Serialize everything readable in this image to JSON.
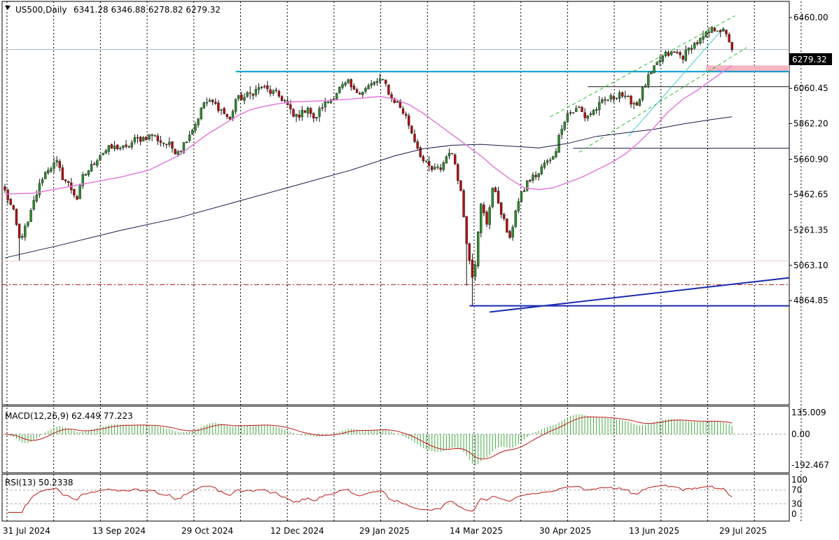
{
  "header": {
    "symbol": "US500,Daily",
    "ohlc": "6341.28 6346.88 6278.82 6279.32"
  },
  "current_price_label": "6279.32",
  "macd_label": "MACD(12,26,9) 62.449 77.223",
  "rsi_label": "RSI(13) 50.2338",
  "colors": {
    "bull": "#2e8b2e",
    "bear": "#b01010",
    "ma_fast": "#e680e0",
    "ma_slow": "#1a1a4a",
    "resistance": "#0099cc",
    "trend_blue": "#1a2ab0",
    "channel_green": "#22bb22",
    "channel_cyan": "#44cccc",
    "zone_pink": "#f4b6c2",
    "macd_line": "#c01818",
    "macd_hist": "#44aa44",
    "rsi_line": "#c01818"
  },
  "chart_data": [
    {
      "type": "candlestick",
      "title": "US500,Daily",
      "ylim": [
        4764,
        6540
      ],
      "y_ticks": [
        "6460.00",
        "6060.45",
        "5862.20",
        "5660.90",
        "5462.65",
        "5261.35",
        "5063.10",
        "4864.85"
      ],
      "x_labels": [
        "31 Jul 2024",
        "13 Sep 2024",
        "29 Oct 2024",
        "12 Dec 2024",
        "29 Jan 2025",
        "14 Mar 2025",
        "30 Apr 2025",
        "13 Jun 2025",
        "29 Jul 2025"
      ],
      "last_price": 6279.32,
      "path_points": [
        [
          0,
          5480
        ],
        [
          3,
          5360
        ],
        [
          5,
          5210
        ],
        [
          8,
          5300
        ],
        [
          10,
          5420
        ],
        [
          13,
          5560
        ],
        [
          15,
          5610
        ],
        [
          18,
          5640
        ],
        [
          20,
          5560
        ],
        [
          22,
          5520
        ],
        [
          25,
          5440
        ],
        [
          27,
          5560
        ],
        [
          30,
          5620
        ],
        [
          33,
          5690
        ],
        [
          36,
          5720
        ],
        [
          39,
          5730
        ],
        [
          42,
          5720
        ],
        [
          45,
          5770
        ],
        [
          48,
          5780
        ],
        [
          51,
          5800
        ],
        [
          54,
          5760
        ],
        [
          57,
          5740
        ],
        [
          59,
          5710
        ],
        [
          61,
          5720
        ],
        [
          63,
          5780
        ],
        [
          66,
          5860
        ],
        [
          69,
          5980
        ],
        [
          72,
          5980
        ],
        [
          75,
          5940
        ],
        [
          78,
          5880
        ],
        [
          80,
          6000
        ],
        [
          83,
          6010
        ],
        [
          86,
          6040
        ],
        [
          89,
          6070
        ],
        [
          92,
          6040
        ],
        [
          94,
          6030
        ],
        [
          97,
          5990
        ],
        [
          100,
          5900
        ],
        [
          103,
          5920
        ],
        [
          105,
          5960
        ],
        [
          107,
          5880
        ],
        [
          110,
          5960
        ],
        [
          113,
          6000
        ],
        [
          116,
          6060
        ],
        [
          119,
          6090
        ],
        [
          121,
          6040
        ],
        [
          124,
          6050
        ],
        [
          127,
          6080
        ],
        [
          130,
          6110
        ],
        [
          132,
          6080
        ],
        [
          134,
          6000
        ],
        [
          136,
          5980
        ],
        [
          139,
          5900
        ],
        [
          142,
          5770
        ],
        [
          145,
          5650
        ],
        [
          148,
          5600
        ],
        [
          151,
          5610
        ],
        [
          154,
          5710
        ],
        [
          156,
          5640
        ],
        [
          158,
          5480
        ],
        [
          160,
          5200
        ],
        [
          162,
          5010
        ],
        [
          163,
          5080
        ],
        [
          165,
          5400
        ],
        [
          167,
          5300
        ],
        [
          169,
          5500
        ],
        [
          171,
          5420
        ],
        [
          173,
          5310
        ],
        [
          175,
          5200
        ],
        [
          177,
          5380
        ],
        [
          179,
          5460
        ],
        [
          181,
          5530
        ],
        [
          183,
          5560
        ],
        [
          185,
          5580
        ],
        [
          187,
          5640
        ],
        [
          189,
          5650
        ],
        [
          191,
          5720
        ],
        [
          193,
          5850
        ],
        [
          195,
          5920
        ],
        [
          197,
          5930
        ],
        [
          199,
          5950
        ],
        [
          201,
          5900
        ],
        [
          203,
          5920
        ],
        [
          205,
          5950
        ],
        [
          207,
          5980
        ],
        [
          209,
          6000
        ],
        [
          211,
          6010
        ],
        [
          213,
          6040
        ],
        [
          215,
          6000
        ],
        [
          217,
          5990
        ],
        [
          219,
          5970
        ],
        [
          221,
          6050
        ],
        [
          223,
          6120
        ],
        [
          225,
          6170
        ],
        [
          227,
          6220
        ],
        [
          229,
          6250
        ],
        [
          232,
          6260
        ],
        [
          235,
          6240
        ],
        [
          238,
          6300
        ],
        [
          241,
          6330
        ],
        [
          243,
          6360
        ],
        [
          245,
          6390
        ],
        [
          247,
          6400
        ],
        [
          249,
          6380
        ],
        [
          251,
          6330
        ],
        [
          252,
          6279
        ]
      ],
      "overlays": {
        "ma_fast": [
          [
            0,
            5465
          ],
          [
            10,
            5470
          ],
          [
            20,
            5500
          ],
          [
            30,
            5530
          ],
          [
            40,
            5560
          ],
          [
            50,
            5600
          ],
          [
            55,
            5640
          ],
          [
            60,
            5680
          ],
          [
            65,
            5740
          ],
          [
            70,
            5800
          ],
          [
            75,
            5850
          ],
          [
            80,
            5900
          ],
          [
            85,
            5940
          ],
          [
            90,
            5960
          ],
          [
            95,
            5975
          ],
          [
            100,
            5985
          ],
          [
            110,
            5990
          ],
          [
            120,
            6000
          ],
          [
            130,
            6015
          ],
          [
            135,
            6000
          ],
          [
            140,
            5970
          ],
          [
            145,
            5920
          ],
          [
            150,
            5860
          ],
          [
            155,
            5800
          ],
          [
            160,
            5740
          ],
          [
            165,
            5680
          ],
          [
            170,
            5610
          ],
          [
            175,
            5550
          ],
          [
            180,
            5500
          ],
          [
            185,
            5490
          ],
          [
            190,
            5500
          ],
          [
            195,
            5530
          ],
          [
            200,
            5560
          ],
          [
            205,
            5600
          ],
          [
            210,
            5640
          ],
          [
            215,
            5690
          ],
          [
            220,
            5760
          ],
          [
            225,
            5840
          ],
          [
            230,
            5930
          ],
          [
            235,
            6000
          ],
          [
            240,
            6050
          ],
          [
            245,
            6110
          ],
          [
            252,
            6190
          ]
        ],
        "ma_slow": [
          [
            0,
            5105
          ],
          [
            20,
            5180
          ],
          [
            40,
            5260
          ],
          [
            60,
            5330
          ],
          [
            80,
            5420
          ],
          [
            100,
            5510
          ],
          [
            120,
            5600
          ],
          [
            135,
            5680
          ],
          [
            145,
            5720
          ],
          [
            155,
            5740
          ],
          [
            165,
            5745
          ],
          [
            175,
            5735
          ],
          [
            185,
            5725
          ],
          [
            195,
            5750
          ],
          [
            205,
            5790
          ],
          [
            215,
            5810
          ],
          [
            225,
            5830
          ],
          [
            235,
            5860
          ],
          [
            245,
            5885
          ],
          [
            252,
            5900
          ]
        ],
        "resistance": {
          "from": 80,
          "to": 270,
          "price": 6155
        },
        "level_high": {
          "from": 202,
          "to": 270,
          "price": 6070
        },
        "level_low": {
          "from": 197,
          "to": 270,
          "price": 5723
        },
        "level_bottom": {
          "from": 161,
          "to": 270,
          "price": 4835
        },
        "dashdot": {
          "from": 0,
          "to": 270,
          "price": 4954
        },
        "trend_line": {
          "x1": 168,
          "y1": 4800,
          "x2": 270,
          "y2": 4993
        },
        "zone": {
          "from": 243,
          "to": 270,
          "low": 6155,
          "high": 6190
        },
        "channel_upper": {
          "x1": 189,
          "y1": 5900,
          "x2": 253,
          "y2": 6470
        },
        "channel_lower": {
          "x1": 199,
          "y1": 5700,
          "x2": 257,
          "y2": 6290
        },
        "channel_mid": {
          "x1": 216,
          "y1": 5790,
          "x2": 249,
          "y2": 6400
        }
      }
    },
    {
      "type": "bar",
      "title": "MACD(12,26,9) 62.449 77.223",
      "ylim": [
        -250,
        170
      ],
      "y_ticks": [
        "135.009",
        "0.00",
        "-192.467"
      ],
      "macd": 62.449,
      "signal": 77.223
    },
    {
      "type": "line",
      "title": "RSI(13) 50.2338",
      "ylim": [
        0,
        100
      ],
      "y_ticks": [
        "100",
        "70",
        "30",
        "0"
      ],
      "value": 50.2338
    }
  ]
}
